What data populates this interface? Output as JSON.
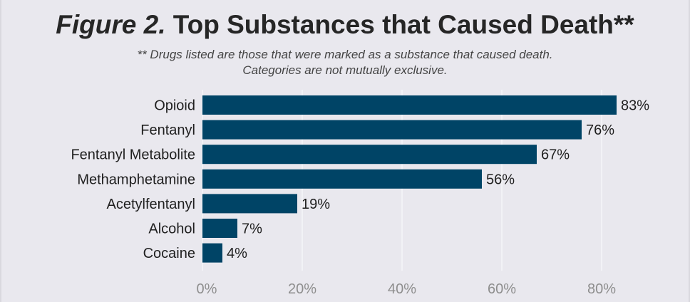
{
  "chart_data": {
    "type": "bar",
    "orientation": "horizontal",
    "title_prefix": "Figure 2.",
    "title_main": "Top Substances that Caused Death**",
    "subtitle_lines": [
      "** Drugs listed are those that were marked as a substance that caused death.",
      "Categories are not mutually exclusive."
    ],
    "categories": [
      "Opioid",
      "Fentanyl",
      "Fentanyl Metabolite",
      "Methamphetamine",
      "Acetylfentanyl",
      "Alcohol",
      "Cocaine"
    ],
    "values": [
      83,
      76,
      67,
      56,
      19,
      7,
      4
    ],
    "value_labels": [
      "83%",
      "76%",
      "67%",
      "56%",
      "19%",
      "7%",
      "4%"
    ],
    "xticks": [
      0,
      20,
      40,
      60,
      80
    ],
    "xtick_labels": [
      "0%",
      "20%",
      "40%",
      "60%",
      "80%"
    ],
    "xlim": [
      0,
      93
    ],
    "grid": true,
    "legend": "none",
    "bar_color": "#004466",
    "grid_color": "#f6f6f8"
  }
}
